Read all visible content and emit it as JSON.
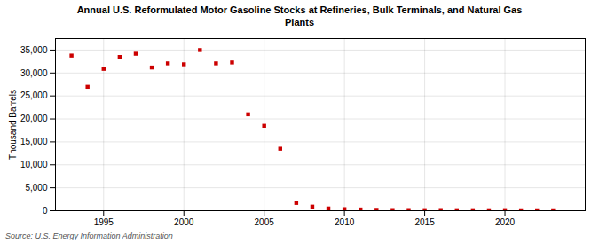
{
  "chart_data": {
    "type": "scatter",
    "title": "Annual U.S. Reformulated Motor Gasoline Stocks at Refineries, Bulk Terminals, and Natural Gas\nPlants",
    "ylabel": "Thousand Barrels",
    "annotations": [
      "Source: U.S. Energy Information Administration"
    ],
    "x": [
      1993,
      1994,
      1995,
      1996,
      1997,
      1998,
      1999,
      2000,
      2001,
      2002,
      2003,
      2004,
      2005,
      2006,
      2007,
      2008,
      2009,
      2010,
      2011,
      2012,
      2013,
      2014,
      2015,
      2016,
      2017,
      2018,
      2019,
      2020,
      2021,
      2022,
      2023
    ],
    "values": [
      33800,
      27000,
      30900,
      33500,
      34200,
      31200,
      32100,
      31900,
      35000,
      32100,
      32300,
      21000,
      18500,
      13500,
      1700,
      900,
      500,
      350,
      280,
      200,
      150,
      150,
      130,
      150,
      120,
      120,
      110,
      130,
      100,
      100,
      100
    ],
    "color": "#cc0000",
    "marker": "square",
    "xlim": [
      1992,
      2025
    ],
    "ylim": [
      0,
      37500
    ],
    "xticks": [
      1995,
      2000,
      2005,
      2010,
      2015,
      2020
    ],
    "yticks": [
      0,
      {
        "value": 5000,
        "label": "5,000"
      },
      {
        "value": 10000,
        "label": "10,000"
      },
      {
        "value": 15000,
        "label": "15,000"
      },
      {
        "value": 20000,
        "label": "20,000"
      },
      {
        "value": 25000,
        "label": "25,000"
      },
      {
        "value": 30000,
        "label": "30,000"
      },
      {
        "value": 35000,
        "label": "35,000"
      }
    ],
    "grid": true
  }
}
